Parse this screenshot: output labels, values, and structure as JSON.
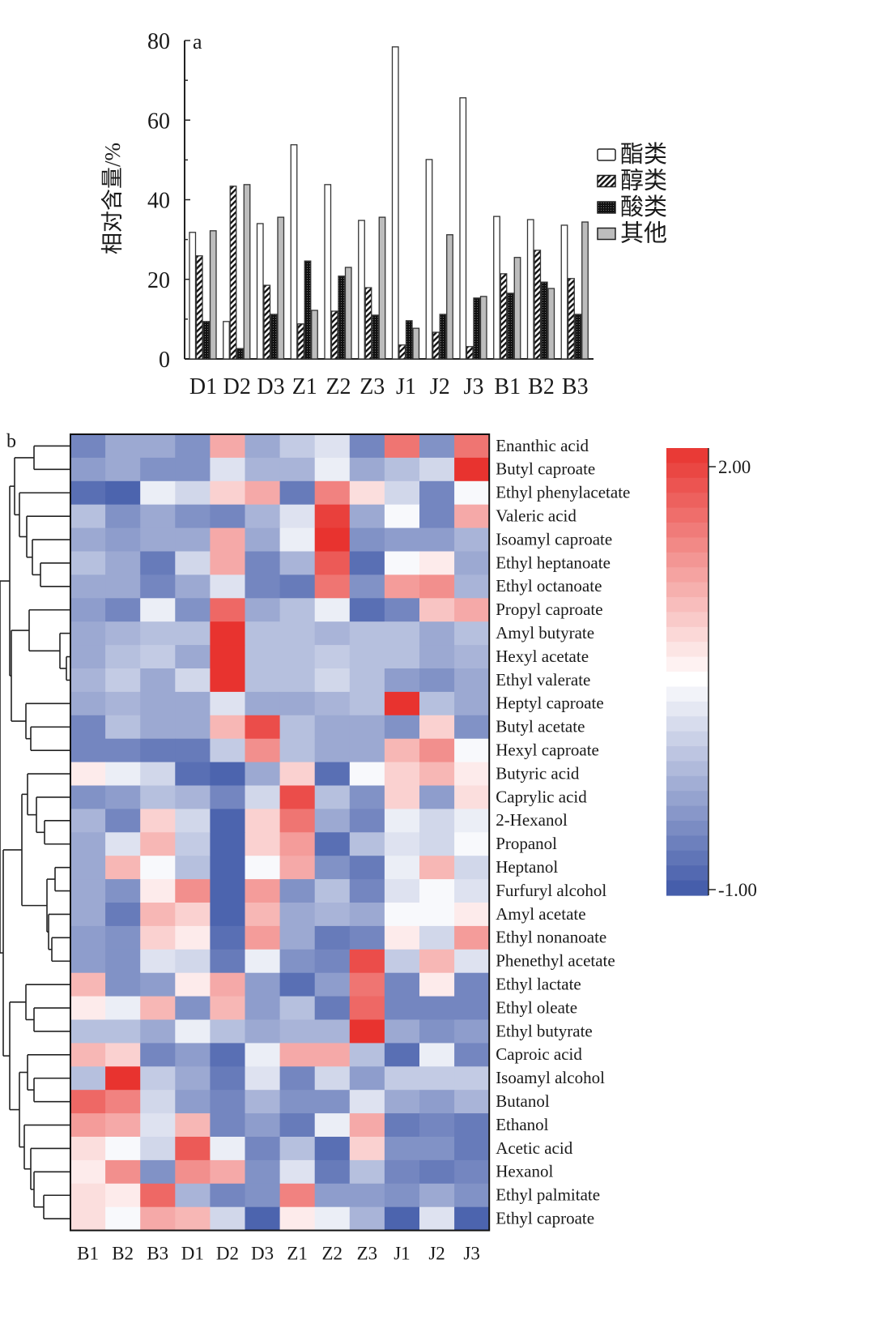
{
  "chart_data": [
    {
      "type": "bar",
      "panel_label": "a",
      "title": "",
      "xlabel": "",
      "ylabel": "相对含量/%",
      "ylim": [
        0,
        80
      ],
      "yticks": [
        0,
        20,
        40,
        60,
        80
      ],
      "grid": false,
      "legend_position": "right",
      "categories": [
        "D1",
        "D2",
        "D3",
        "Z1",
        "Z2",
        "Z3",
        "J1",
        "J2",
        "J3",
        "B1",
        "B2",
        "B3"
      ],
      "series": [
        {
          "name": "酯类",
          "pattern": "white",
          "values": [
            31.8,
            9.4,
            34.0,
            53.8,
            43.8,
            34.8,
            78.4,
            50.1,
            65.6,
            35.8,
            35.0,
            33.6
          ]
        },
        {
          "name": "醇类",
          "pattern": "hatch",
          "values": [
            25.9,
            43.4,
            18.5,
            8.8,
            12.0,
            17.9,
            3.5,
            6.7,
            3.1,
            21.4,
            27.3,
            20.2
          ]
        },
        {
          "name": "酸类",
          "pattern": "black",
          "values": [
            9.4,
            2.6,
            11.2,
            24.6,
            20.8,
            11.0,
            9.6,
            11.2,
            15.3,
            16.5,
            19.3,
            11.2
          ]
        },
        {
          "name": "其他",
          "pattern": "gray",
          "values": [
            32.2,
            43.8,
            35.6,
            12.2,
            23.0,
            35.6,
            7.7,
            31.2,
            15.7,
            25.5,
            17.7,
            34.4
          ]
        }
      ]
    },
    {
      "type": "heatmap",
      "panel_label": "b",
      "title": "",
      "columns": [
        "B1",
        "B2",
        "B3",
        "D1",
        "D2",
        "D3",
        "Z1",
        "Z2",
        "Z3",
        "J1",
        "J2",
        "J3"
      ],
      "rows": [
        "Enanthic acid",
        "Butyl caproate",
        "Ethyl phenylacetate",
        "Valeric acid",
        "Isoamyl caproate",
        "Ethyl heptanoate",
        "Ethyl octanoate",
        "Propyl caproate",
        "Amyl butyrate",
        "Hexyl acetate",
        "Ethyl valerate",
        "Heptyl caproate",
        "Butyl acetate",
        "Hexyl caproate",
        "Butyric acid",
        "Caprylic acid",
        "2-Hexanol",
        "Propanol",
        "Heptanol",
        "Furfuryl alcohol",
        "Amyl acetate",
        "Ethyl nonanoate",
        "Phenethyl acetate",
        "Ethyl lactate",
        "Ethyl oleate",
        "Ethyl butyrate",
        "Caproic acid",
        "Isoamyl alcohol",
        "Butanol",
        "Ethanol",
        "Acetic acid",
        "Hexanol",
        "Ethyl palmitate",
        "Ethyl caproate"
      ],
      "values": [
        [
          -0.6,
          -0.3,
          -0.3,
          -0.5,
          1.1,
          -0.3,
          0.0,
          0.2,
          -0.6,
          1.5,
          -0.5,
          1.5
        ],
        [
          -0.4,
          -0.3,
          -0.5,
          -0.5,
          0.2,
          -0.2,
          -0.2,
          0.3,
          -0.3,
          -0.1,
          0.1,
          2.0
        ],
        [
          -0.8,
          -0.9,
          0.3,
          0.1,
          0.8,
          1.1,
          -0.7,
          1.4,
          0.7,
          0.1,
          -0.6,
          0.4
        ],
        [
          -0.1,
          -0.5,
          -0.3,
          -0.5,
          -0.6,
          -0.2,
          0.2,
          1.9,
          -0.3,
          0.4,
          -0.6,
          1.1
        ],
        [
          -0.3,
          -0.4,
          -0.3,
          -0.3,
          1.1,
          -0.3,
          0.3,
          2.0,
          -0.5,
          -0.4,
          -0.4,
          -0.2
        ],
        [
          -0.1,
          -0.3,
          -0.7,
          0.1,
          1.1,
          -0.6,
          -0.2,
          1.7,
          -0.8,
          0.4,
          0.6,
          -0.3
        ],
        [
          -0.3,
          -0.3,
          -0.6,
          -0.3,
          0.2,
          -0.6,
          -0.7,
          1.5,
          -0.5,
          1.2,
          1.3,
          -0.2
        ],
        [
          -0.4,
          -0.6,
          0.3,
          -0.5,
          1.6,
          -0.3,
          -0.1,
          0.3,
          -0.8,
          -0.6,
          0.9,
          1.1
        ],
        [
          -0.3,
          -0.2,
          -0.1,
          -0.1,
          2.0,
          -0.1,
          -0.1,
          -0.2,
          -0.1,
          -0.1,
          -0.3,
          -0.1
        ],
        [
          -0.3,
          -0.1,
          0.0,
          -0.3,
          2.0,
          -0.1,
          -0.1,
          0.0,
          -0.1,
          -0.1,
          -0.3,
          -0.2
        ],
        [
          -0.2,
          0.0,
          -0.3,
          0.1,
          2.0,
          -0.1,
          -0.1,
          0.1,
          -0.1,
          -0.4,
          -0.5,
          -0.3
        ],
        [
          -0.3,
          -0.2,
          -0.3,
          -0.3,
          0.2,
          -0.3,
          -0.3,
          -0.2,
          -0.1,
          2.0,
          -0.1,
          -0.3
        ],
        [
          -0.6,
          -0.1,
          -0.3,
          -0.3,
          1.0,
          1.8,
          -0.1,
          -0.3,
          -0.3,
          -0.5,
          0.8,
          -0.5
        ],
        [
          -0.6,
          -0.6,
          -0.7,
          -0.7,
          0.0,
          1.3,
          -0.1,
          -0.3,
          -0.3,
          1.0,
          1.3,
          0.4
        ],
        [
          0.6,
          0.3,
          0.1,
          -0.8,
          -0.9,
          -0.3,
          0.8,
          -0.8,
          0.4,
          0.8,
          1.0,
          0.6
        ],
        [
          -0.5,
          -0.4,
          -0.1,
          -0.2,
          -0.6,
          0.1,
          1.8,
          -0.1,
          -0.5,
          0.8,
          -0.4,
          0.7
        ],
        [
          -0.2,
          -0.6,
          0.8,
          0.1,
          -0.9,
          0.8,
          1.5,
          -0.3,
          -0.6,
          0.3,
          0.1,
          0.3
        ],
        [
          -0.3,
          0.2,
          1.0,
          0.0,
          -0.9,
          0.8,
          1.2,
          -0.8,
          -0.1,
          0.2,
          0.1,
          0.4
        ],
        [
          -0.3,
          1.0,
          0.4,
          -0.1,
          -0.9,
          0.4,
          1.1,
          -0.5,
          -0.7,
          0.3,
          1.0,
          0.1
        ],
        [
          -0.3,
          -0.5,
          0.6,
          1.3,
          -0.9,
          1.2,
          -0.5,
          -0.1,
          -0.6,
          0.2,
          0.4,
          0.2
        ],
        [
          -0.3,
          -0.7,
          1.0,
          0.8,
          -0.9,
          1.0,
          -0.3,
          -0.2,
          -0.3,
          0.4,
          0.4,
          0.6
        ],
        [
          -0.4,
          -0.5,
          0.8,
          0.6,
          -0.8,
          1.2,
          -0.3,
          -0.7,
          -0.6,
          0.6,
          0.1,
          1.2
        ],
        [
          -0.4,
          -0.5,
          0.2,
          0.1,
          -0.7,
          0.3,
          -0.5,
          -0.6,
          1.8,
          0.0,
          1.0,
          0.2
        ],
        [
          1.0,
          -0.5,
          -0.4,
          0.6,
          1.1,
          -0.4,
          -0.8,
          -0.4,
          1.5,
          -0.6,
          0.6,
          -0.6
        ],
        [
          0.6,
          0.3,
          1.0,
          -0.5,
          1.0,
          -0.4,
          -0.1,
          -0.7,
          1.6,
          -0.6,
          -0.6,
          -0.6
        ],
        [
          -0.1,
          -0.1,
          -0.3,
          0.3,
          -0.1,
          -0.3,
          -0.2,
          -0.2,
          2.0,
          -0.3,
          -0.5,
          -0.4
        ],
        [
          1.0,
          0.8,
          -0.6,
          -0.4,
          -0.8,
          0.3,
          1.1,
          1.1,
          -0.1,
          -0.8,
          0.3,
          -0.6
        ],
        [
          -0.1,
          2.0,
          0.0,
          -0.3,
          -0.7,
          0.2,
          -0.6,
          0.1,
          -0.4,
          0.0,
          0.0,
          0.0
        ],
        [
          1.6,
          1.4,
          0.1,
          -0.4,
          -0.6,
          -0.2,
          -0.5,
          -0.5,
          0.2,
          -0.3,
          -0.4,
          -0.2
        ],
        [
          1.2,
          1.1,
          0.2,
          1.0,
          -0.6,
          -0.4,
          -0.7,
          0.3,
          1.1,
          -0.7,
          -0.6,
          -0.7
        ],
        [
          0.7,
          0.4,
          0.1,
          1.7,
          0.3,
          -0.6,
          -0.1,
          -0.8,
          0.8,
          -0.5,
          -0.5,
          -0.7
        ],
        [
          0.6,
          1.3,
          -0.5,
          1.3,
          1.1,
          -0.5,
          0.2,
          -0.7,
          -0.1,
          -0.6,
          -0.7,
          -0.6
        ],
        [
          0.7,
          0.6,
          1.6,
          -0.2,
          -0.6,
          -0.5,
          1.4,
          -0.4,
          -0.4,
          -0.5,
          -0.3,
          -0.5
        ],
        [
          0.7,
          0.4,
          1.1,
          1.0,
          0.1,
          -0.9,
          0.6,
          0.3,
          -0.2,
          -0.9,
          0.2,
          -0.9
        ]
      ],
      "colorbar": {
        "min": -1.0,
        "max": 2.0,
        "ticks": [
          "2.00",
          "-1.00"
        ],
        "low_color": "#3f58a8",
        "mid_color": "#ffffff",
        "high_color": "#e8332f",
        "mid_value": 0.45
      },
      "dendrogram": "left"
    }
  ]
}
